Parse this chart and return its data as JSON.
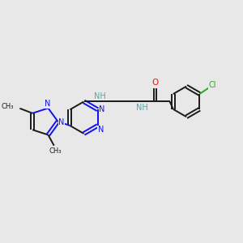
{
  "bg_color": "#e8e8e8",
  "bond_color": "#1a1a1a",
  "n_color": "#1010ee",
  "o_color": "#ee1010",
  "cl_color": "#22aa22",
  "nh_color": "#4aacac",
  "figsize": [
    3.0,
    3.0
  ],
  "dpi": 100,
  "xlim": [
    0,
    12
  ],
  "ylim": [
    0,
    10
  ]
}
